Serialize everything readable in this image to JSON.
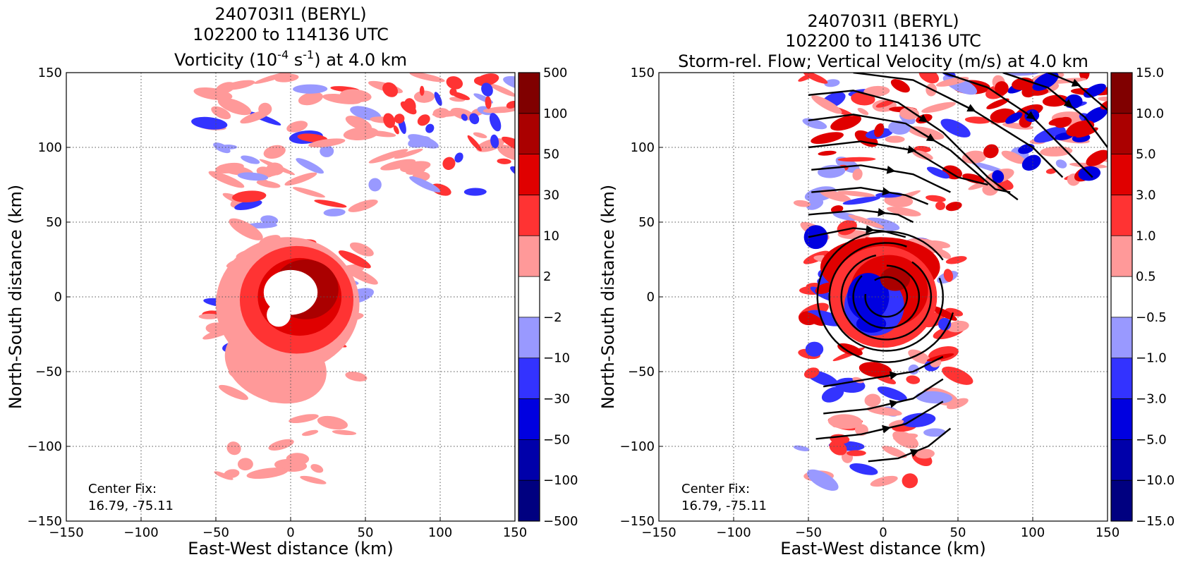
{
  "figure": {
    "left": {
      "title_line1": "240703I1 (BERYL)",
      "title_line2": "102200 to 114136 UTC",
      "title_line3_pre": "Vorticity (10",
      "title_line3_sup1": "-4",
      "title_line3_mid": " s",
      "title_line3_sup2": "-1",
      "title_line3_post": ") at 4.0 km",
      "center_fix_label": "Center Fix:",
      "center_fix_value": "16.79, -75.11"
    },
    "right": {
      "title_line1": "240703I1 (BERYL)",
      "title_line2": "102200 to 114136 UTC",
      "title_line3": "Storm-rel. Flow; Vertical Velocity (m/s) at 4.0 km",
      "center_fix_label": "Center Fix:",
      "center_fix_value": "16.79, -75.11"
    }
  },
  "chart_data": [
    {
      "type": "heatmap",
      "title": "240703I1 (BERYL) 102200 to 114136 UTC Vorticity (10^-4 s^-1) at 4.0 km",
      "xlabel": "East-West distance (km)",
      "ylabel": "North-South distance (km)",
      "xlim": [
        -150,
        150
      ],
      "ylim": [
        -150,
        150
      ],
      "xticks": [
        "−150",
        "−100",
        "−50",
        "0",
        "50",
        "100",
        "150"
      ],
      "yticks": [
        "−150",
        "−100",
        "−50",
        "0",
        "50",
        "100",
        "150"
      ],
      "grid": true,
      "colorbar_ticks": [
        "500",
        "100",
        "50",
        "30",
        "10",
        "2",
        "−2",
        "−10",
        "−30",
        "−50",
        "−100",
        "−500"
      ],
      "colorbar_colors": [
        "#000080",
        "#0000aa",
        "#0000e0",
        "#3333ff",
        "#9999ff",
        "#ffffff",
        "#ff9999",
        "#ff3333",
        "#e00000",
        "#aa0000",
        "#800000"
      ]
    },
    {
      "type": "heatmap",
      "title": "240703I1 (BERYL) 102200 to 114136 UTC Storm-rel. Flow; Vertical Velocity (m/s) at 4.0 km",
      "xlabel": "East-West distance (km)",
      "ylabel": "North-South distance (km)",
      "xlim": [
        -150,
        150
      ],
      "ylim": [
        -150,
        150
      ],
      "xticks": [
        "−150",
        "−100",
        "−50",
        "0",
        "50",
        "100",
        "150"
      ],
      "yticks": [
        "−150",
        "−100",
        "−50",
        "0",
        "50",
        "100",
        "150"
      ],
      "grid": true,
      "colorbar_ticks": [
        "15.0",
        "10.0",
        "5.0",
        "3.0",
        "1.0",
        "0.5",
        "−0.5",
        "−1.0",
        "−3.0",
        "−5.0",
        "−10.0",
        "−15.0"
      ],
      "colorbar_colors": [
        "#000080",
        "#0000aa",
        "#0000e0",
        "#3333ff",
        "#9999ff",
        "#ffffff",
        "#ff9999",
        "#ff3333",
        "#e00000",
        "#aa0000",
        "#800000"
      ],
      "streamlines": "cyclonic (counter-clockwise) circulation around center with northwesterly-to-southeasterly flow in the north"
    }
  ]
}
